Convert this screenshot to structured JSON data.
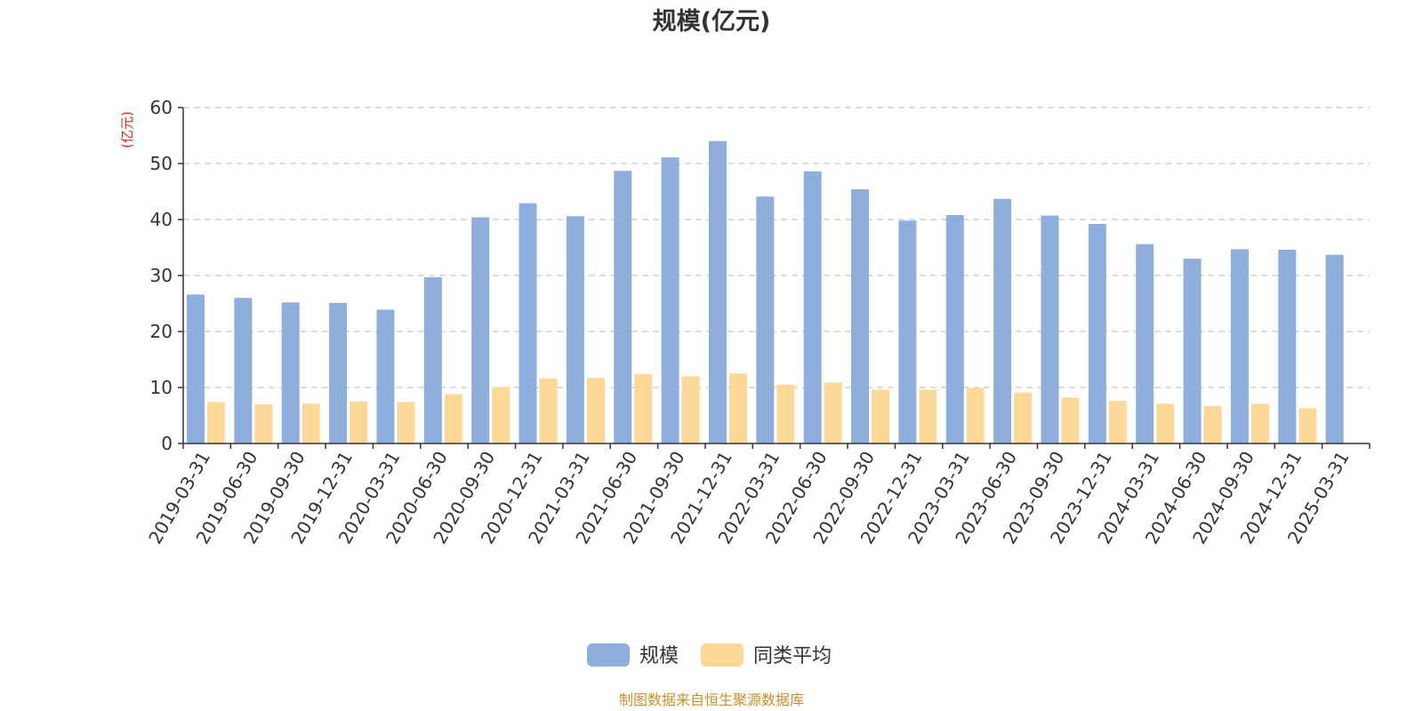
{
  "chart_data": {
    "type": "bar",
    "title": "规模(亿元)",
    "ylabel": "(亿元)",
    "xlabel": "",
    "ylim": [
      0,
      60
    ],
    "yticks": [
      0,
      10,
      20,
      30,
      40,
      50,
      60
    ],
    "grid": true,
    "legend_position": "bottom-center",
    "categories": [
      "2019-03-31",
      "2019-06-30",
      "2019-09-30",
      "2019-12-31",
      "2020-03-31",
      "2020-06-30",
      "2020-09-30",
      "2020-12-31",
      "2021-03-31",
      "2021-06-30",
      "2021-09-30",
      "2021-12-31",
      "2022-03-31",
      "2022-06-30",
      "2022-09-30",
      "2022-12-31",
      "2023-03-31",
      "2023-06-30",
      "2023-09-30",
      "2023-12-31",
      "2024-03-31",
      "2024-06-30",
      "2024-09-30",
      "2024-12-31",
      "2025-03-31"
    ],
    "series": [
      {
        "name": "规模",
        "color": "#8eaedc",
        "values": [
          26.6,
          26.0,
          25.2,
          25.1,
          23.9,
          29.7,
          40.4,
          42.9,
          40.6,
          48.7,
          51.1,
          54.0,
          44.1,
          48.6,
          45.4,
          39.8,
          40.8,
          43.7,
          40.7,
          39.2,
          35.6,
          33.0,
          34.7,
          34.6,
          33.7
        ]
      },
      {
        "name": "同类平均",
        "color": "#fdd897",
        "values": [
          7.4,
          7.0,
          7.1,
          7.5,
          7.4,
          8.8,
          10.1,
          11.6,
          11.7,
          12.4,
          12.0,
          12.5,
          10.5,
          10.9,
          9.6,
          9.6,
          9.9,
          9.1,
          8.2,
          7.6,
          7.1,
          6.7,
          7.1,
          6.3,
          null
        ]
      }
    ]
  },
  "footer": {
    "source_note": "制图数据来自恒生聚源数据库"
  }
}
